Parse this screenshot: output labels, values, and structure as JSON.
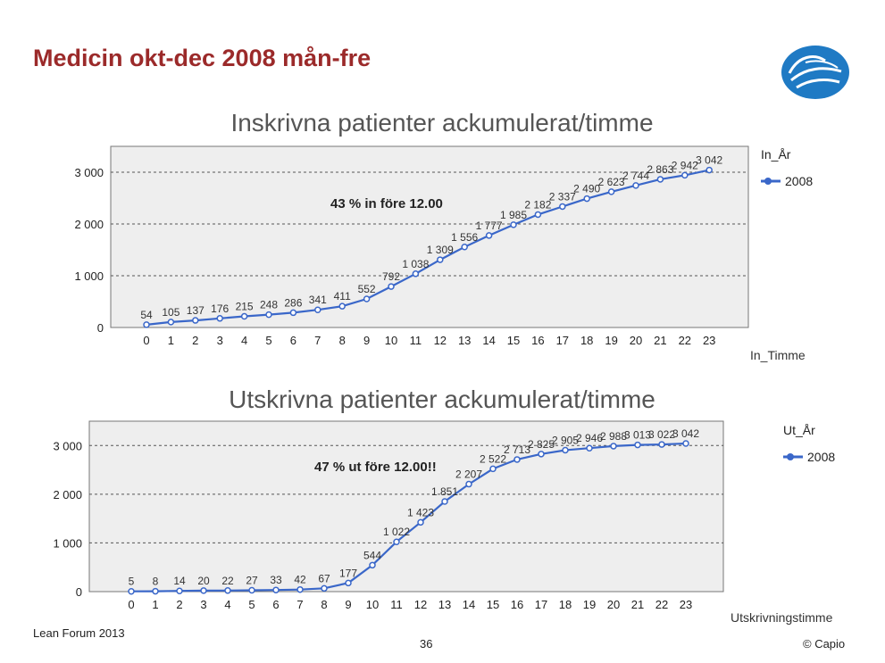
{
  "slide": {
    "title": "Medicin okt-dec 2008 mån-fre",
    "footer_left": "Lean Forum 2013",
    "page_number": "36",
    "copyright": "© Capio"
  },
  "chart_data": [
    {
      "type": "line",
      "title": "Inskrivna patienter ackumulerat/timme",
      "xlabel": "In_Timme",
      "legend_title": "In_År",
      "annotation": "43 % in före 12.00",
      "categories": [
        "0",
        "1",
        "2",
        "3",
        "4",
        "5",
        "6",
        "7",
        "8",
        "9",
        "10",
        "11",
        "12",
        "13",
        "14",
        "15",
        "16",
        "17",
        "18",
        "19",
        "20",
        "21",
        "22",
        "23"
      ],
      "series": [
        {
          "name": "2008",
          "values": [
            54,
            105,
            137,
            176,
            215,
            248,
            286,
            341,
            411,
            552,
            792,
            1038,
            1309,
            1556,
            1777,
            1985,
            2182,
            2337,
            2490,
            2623,
            2744,
            2863,
            2942,
            3042
          ],
          "labels": [
            "54",
            "105",
            "137",
            "176",
            "215",
            "248",
            "286",
            "341",
            "411",
            "552",
            "792",
            "1 038",
            "1 309",
            "1 556",
            "1 777",
            "1 985",
            "2 182",
            "2 337",
            "2 490",
            "2 623",
            "2 744",
            "2 863",
            "2 942",
            "3 042"
          ]
        }
      ],
      "yticks": [
        "0",
        "1 000",
        "2 000",
        "3 000"
      ],
      "ylim": [
        0,
        3000
      ],
      "grid": true,
      "legend_position": "right",
      "color": "#3a67c9",
      "plot_bg": "#eeeeee"
    },
    {
      "type": "line",
      "title": "Utskrivna patienter ackumulerat/timme",
      "xlabel": "Utskrivningstimme",
      "legend_title": "Ut_År",
      "annotation": "47 % ut före 12.00!!",
      "categories": [
        "0",
        "1",
        "2",
        "3",
        "4",
        "5",
        "6",
        "7",
        "8",
        "9",
        "10",
        "11",
        "12",
        "13",
        "14",
        "15",
        "16",
        "17",
        "18",
        "19",
        "20",
        "21",
        "22",
        "23"
      ],
      "series": [
        {
          "name": "2008",
          "values": [
            5,
            8,
            14,
            20,
            22,
            27,
            33,
            42,
            67,
            177,
            544,
            1022,
            1423,
            1851,
            2207,
            2522,
            2713,
            2825,
            2905,
            2946,
            2988,
            3013,
            3022,
            3042
          ],
          "labels": [
            "5",
            "8",
            "14",
            "20",
            "22",
            "27",
            "33",
            "42",
            "67",
            "177",
            "544",
            "1 022",
            "1 423",
            "1 851",
            "2 207",
            "2 522",
            "2 713",
            "2 825",
            "2 905",
            "2 946",
            "2 988",
            "3 013",
            "3 022",
            "3 042"
          ]
        }
      ],
      "yticks": [
        "0",
        "1 000",
        "2 000",
        "3 000"
      ],
      "ylim": [
        0,
        3000
      ],
      "grid": true,
      "legend_position": "right",
      "color": "#3a67c9",
      "plot_bg": "#eeeeee"
    }
  ]
}
